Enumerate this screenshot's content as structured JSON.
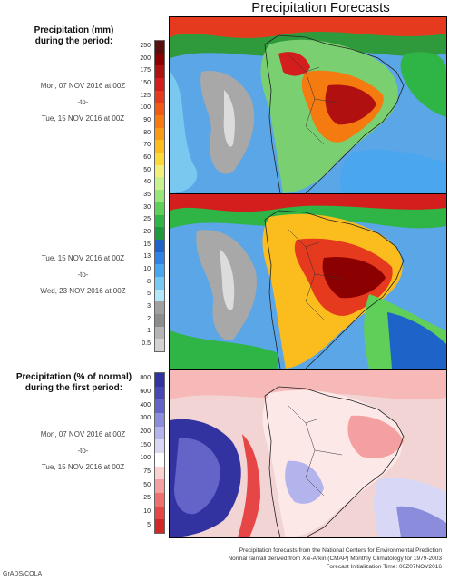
{
  "title": "Precipitation Forecasts",
  "precip_header": [
    "Precipitation (mm)",
    "during the period:"
  ],
  "period1": [
    "Mon, 07 NOV 2016 at 00Z",
    "-to-",
    "Tue, 15 NOV 2016 at 00Z"
  ],
  "period2": [
    "Tue, 15 NOV 2016 at 00Z",
    "-to-",
    "Wed, 23 NOV 2016 at 00Z"
  ],
  "pct_header": [
    "Precipitation (% of normal)",
    "during the first period:"
  ],
  "period3": [
    "Mon, 07 NOV 2016 at 00Z",
    "-to-",
    "Tue, 15 NOV 2016 at 00Z"
  ],
  "precip_scale": {
    "ticks": [
      "250",
      "200",
      "175",
      "150",
      "125",
      "100",
      "90",
      "80",
      "70",
      "60",
      "50",
      "40",
      "35",
      "30",
      "25",
      "20",
      "15",
      "13",
      "10",
      "8",
      "5",
      "3",
      "2",
      "1",
      "0.5"
    ],
    "colors": [
      "#5a0f0f",
      "#8b0000",
      "#b01010",
      "#d41e1e",
      "#e63a1e",
      "#f05a14",
      "#f57a0f",
      "#f99a14",
      "#fbbc1e",
      "#fdd83a",
      "#f2f07a",
      "#c8f08c",
      "#96e678",
      "#5fcf5a",
      "#2fb446",
      "#1e9a3c",
      "#1e64c8",
      "#2f82e6",
      "#4ba6f0",
      "#78c8f5",
      "#b4e6fa",
      "#a0a0a0",
      "#8c8c8c",
      "#b4b4b4",
      "#d2d2d2"
    ]
  },
  "pct_scale": {
    "ticks": [
      "800",
      "600",
      "400",
      "300",
      "200",
      "150",
      "100",
      "75",
      "50",
      "25",
      "10",
      "5"
    ],
    "colors": [
      "#3232a0",
      "#4646b4",
      "#6464c8",
      "#8c8cdc",
      "#b4b4ec",
      "#d8d8f6",
      "#ffffff",
      "#fbd2d2",
      "#f5a0a0",
      "#f07070",
      "#e64646",
      "#d22828"
    ]
  },
  "footer": [
    "Precipitation forecasts from the National Centers for Environmental Prediction",
    "Normal rainfall derived from Xie-Arkin (CMAP) Monthly Climatology for 1979-2003",
    "Forecast Initialization Time: 00Z07NOV2016"
  ],
  "credit": "GrADS/COLA"
}
